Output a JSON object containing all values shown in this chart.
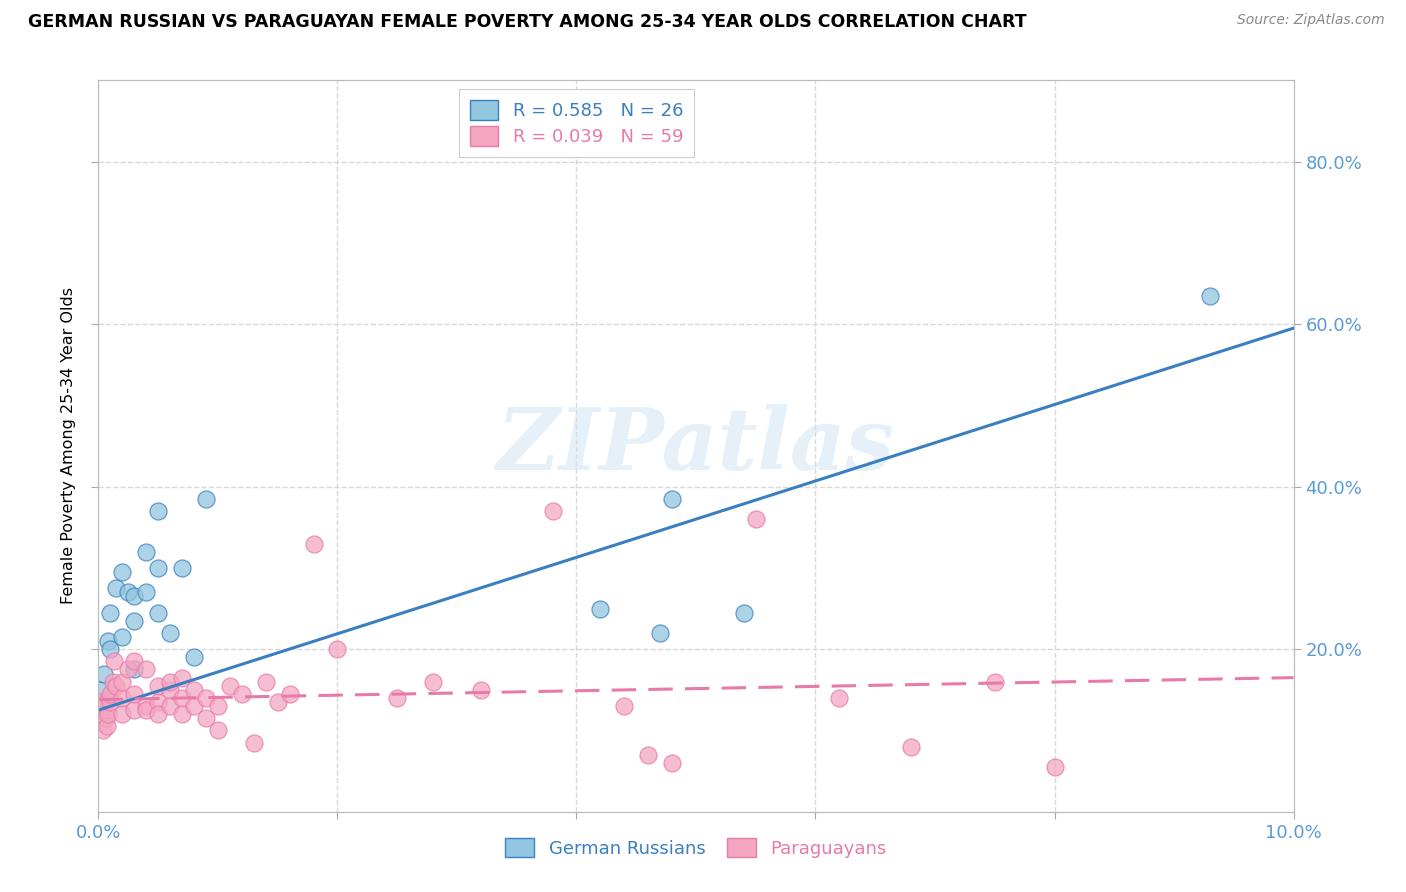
{
  "title": "GERMAN RUSSIAN VS PARAGUAYAN FEMALE POVERTY AMONG 25-34 YEAR OLDS CORRELATION CHART",
  "source": "Source: ZipAtlas.com",
  "ylabel": "Female Poverty Among 25-34 Year Olds",
  "legend_line1": "R = 0.585   N = 26",
  "legend_line2": "R = 0.039   N = 59",
  "blue_color": "#92c5de",
  "pink_color": "#f4a6c0",
  "blue_line_color": "#3a7fc1",
  "pink_line_color": "#e87aab",
  "blue_scatter_x": [
    0.0002,
    0.0005,
    0.0008,
    0.001,
    0.001,
    0.0015,
    0.002,
    0.002,
    0.0025,
    0.003,
    0.003,
    0.003,
    0.004,
    0.004,
    0.005,
    0.005,
    0.005,
    0.006,
    0.007,
    0.008,
    0.009,
    0.042,
    0.047,
    0.048,
    0.054,
    0.093
  ],
  "blue_scatter_y": [
    0.15,
    0.17,
    0.21,
    0.2,
    0.245,
    0.275,
    0.215,
    0.295,
    0.27,
    0.235,
    0.265,
    0.175,
    0.27,
    0.32,
    0.3,
    0.245,
    0.37,
    0.22,
    0.3,
    0.19,
    0.385,
    0.25,
    0.22,
    0.385,
    0.245,
    0.635
  ],
  "pink_scatter_x": [
    0.0001,
    0.0002,
    0.0003,
    0.0004,
    0.0005,
    0.0006,
    0.0007,
    0.0008,
    0.0009,
    0.001,
    0.001,
    0.0012,
    0.0013,
    0.0015,
    0.002,
    0.002,
    0.002,
    0.0025,
    0.003,
    0.003,
    0.003,
    0.004,
    0.004,
    0.004,
    0.005,
    0.005,
    0.005,
    0.006,
    0.006,
    0.006,
    0.007,
    0.007,
    0.007,
    0.008,
    0.008,
    0.009,
    0.009,
    0.01,
    0.01,
    0.011,
    0.012,
    0.013,
    0.014,
    0.015,
    0.016,
    0.018,
    0.02,
    0.025,
    0.028,
    0.032,
    0.038,
    0.044,
    0.046,
    0.048,
    0.055,
    0.062,
    0.068,
    0.075,
    0.08
  ],
  "pink_scatter_y": [
    0.135,
    0.12,
    0.115,
    0.1,
    0.13,
    0.115,
    0.105,
    0.12,
    0.14,
    0.135,
    0.145,
    0.16,
    0.185,
    0.155,
    0.14,
    0.16,
    0.12,
    0.175,
    0.125,
    0.145,
    0.185,
    0.13,
    0.125,
    0.175,
    0.155,
    0.135,
    0.12,
    0.15,
    0.13,
    0.16,
    0.14,
    0.12,
    0.165,
    0.15,
    0.13,
    0.115,
    0.14,
    0.1,
    0.13,
    0.155,
    0.145,
    0.085,
    0.16,
    0.135,
    0.145,
    0.33,
    0.2,
    0.14,
    0.16,
    0.15,
    0.37,
    0.13,
    0.07,
    0.06,
    0.36,
    0.14,
    0.08,
    0.16,
    0.055
  ],
  "blue_line_x": [
    0.0,
    0.1
  ],
  "blue_line_y": [
    0.125,
    0.595
  ],
  "pink_line_x": [
    0.0,
    0.1
  ],
  "pink_line_y": [
    0.138,
    0.165
  ],
  "right_ytick_vals": [
    0.2,
    0.4,
    0.6,
    0.8
  ],
  "right_ytick_labels": [
    "20.0%",
    "40.0%",
    "60.0%",
    "80.0%"
  ],
  "xmin": 0.0,
  "xmax": 0.1,
  "ymin": 0.0,
  "ymax": 0.9,
  "tick_color": "#5b9bd5",
  "grid_color": "#d8d8d8",
  "watermark": "ZIPatlas"
}
